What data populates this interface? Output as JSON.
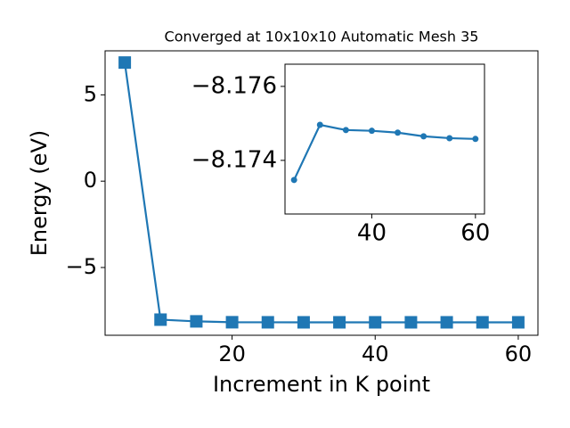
{
  "chart_data": [
    {
      "type": "line",
      "title": "Converged at 10x10x10 Automatic Mesh 35",
      "xlabel": "Increment in K point",
      "ylabel": "Energy (eV)",
      "x": [
        5,
        10,
        15,
        20,
        25,
        30,
        35,
        40,
        45,
        50,
        55,
        60
      ],
      "values": [
        6.87,
        -8.02,
        -8.12,
        -8.17,
        -8.1735,
        -8.175,
        -8.1748,
        -8.1748,
        -8.1747,
        -8.1747,
        -8.1746,
        -8.1746
      ],
      "color": "#1f77b4",
      "marker": "square",
      "xlim": [
        2.25,
        62.75
      ],
      "ylim": [
        -8.925,
        7.549
      ],
      "xticks": [
        20,
        40,
        60
      ],
      "yticks": [
        {
          "value": -5,
          "label": "−5"
        },
        0,
        5
      ]
    },
    {
      "type": "line",
      "x": [
        25,
        30,
        35,
        40,
        45,
        50,
        55,
        60
      ],
      "values": [
        -8.17347,
        -8.17496,
        -8.17482,
        -8.1748,
        -8.17475,
        -8.17465,
        -8.1746,
        -8.17458
      ],
      "color": "#1f77b4",
      "marker": "circle",
      "xlim": [
        23.25,
        61.75
      ],
      "ylim": [
        -8.17255,
        -8.1766
      ],
      "xticks": [
        40,
        60
      ],
      "yticks": [
        {
          "value": -8.176,
          "label": "−8.176"
        },
        {
          "value": -8.174,
          "label": "−8.174"
        }
      ]
    }
  ]
}
